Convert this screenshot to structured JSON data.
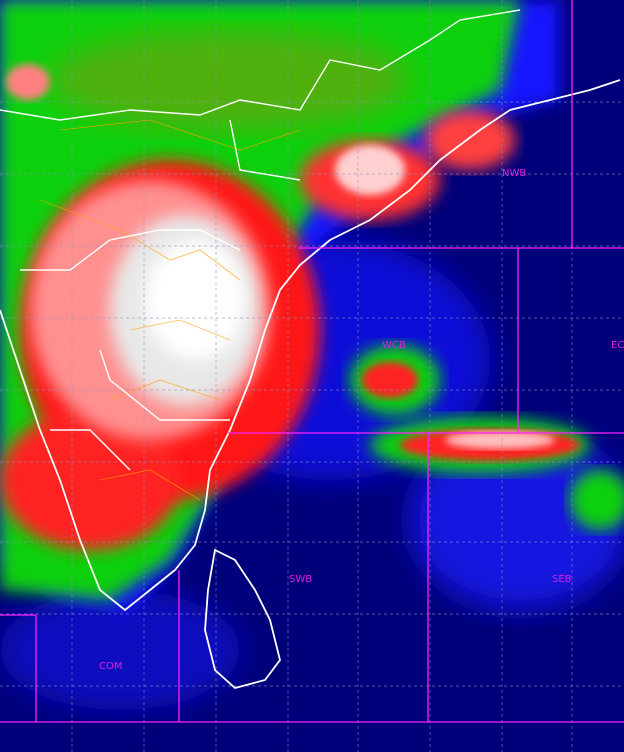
{
  "map": {
    "regions": [
      {
        "id": "nwb",
        "label": "NWB"
      },
      {
        "id": "wcb",
        "label": "WCB"
      },
      {
        "id": "ecb",
        "label": "EC"
      },
      {
        "id": "swb",
        "label": "SWB"
      },
      {
        "id": "seb",
        "label": "SEB"
      },
      {
        "id": "com",
        "label": "COM"
      }
    ],
    "colors": {
      "ocean": "#00007a",
      "cloud_low": "#1010ff",
      "cloud_mid": "#00e000",
      "cloud_high": "#ff1010",
      "cloud_top": "#ffffff",
      "boundary": "#ff20ff",
      "coastline": "#ffffff",
      "state_lines": "#ffa000"
    }
  }
}
